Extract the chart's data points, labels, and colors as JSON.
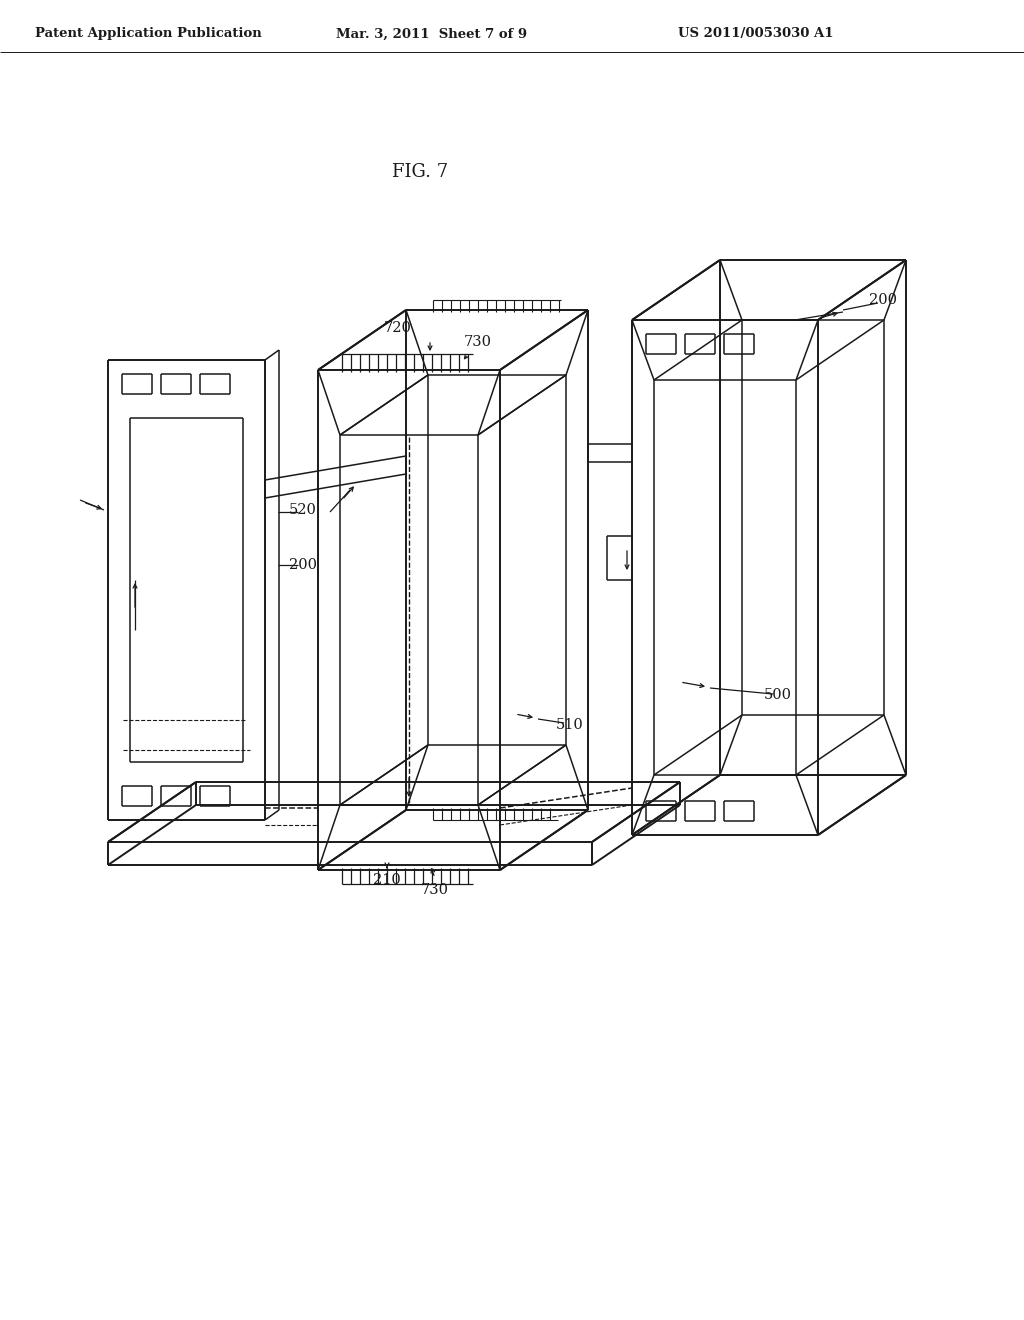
{
  "background_color": "#ffffff",
  "line_color": "#1a1a1a",
  "title": "FIG. 7",
  "header_left": "Patent Application Publication",
  "header_mid": "Mar. 3, 2011  Sheet 7 of 9",
  "header_right": "US 2011/0053030 A1",
  "header_fontsize": 9.5,
  "title_fontsize": 13,
  "label_fontsize": 10.5,
  "lw_main": 1.4,
  "lw_inner": 1.1
}
